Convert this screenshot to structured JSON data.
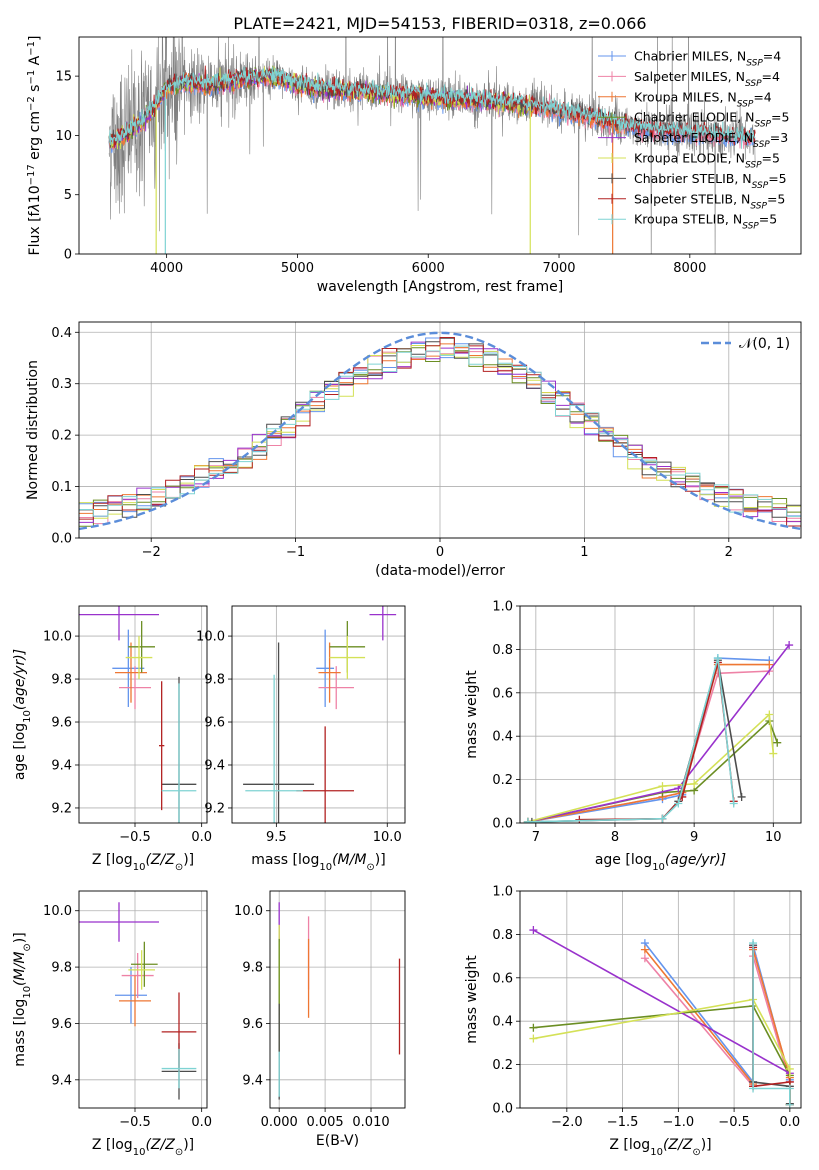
{
  "figure": {
    "title": "PLATE=2421, MJD=54153, FIBERID=0318, z=0.066"
  },
  "colors": {
    "data": "#808080",
    "chabrier_miles": "#6495ed",
    "salpeter_miles": "#ee82a6",
    "kroupa_miles": "#ee7733",
    "chabrier_elodie": "#6b8e23",
    "salpeter_elodie": "#9932cc",
    "kroupa_elodie": "#d4e157",
    "chabrier_stelib": "#4d4d4d",
    "salpeter_stelib": "#b22222",
    "kroupa_stelib": "#7fd3d3",
    "normal": "#5b8dd9"
  },
  "legend": {
    "models": [
      {
        "key": "chabrier_miles",
        "name": "Chabrier MILES, N",
        "sub": "SSP",
        "tail": "=4"
      },
      {
        "key": "salpeter_miles",
        "name": "Salpeter MILES, N",
        "sub": "SSP",
        "tail": "=4"
      },
      {
        "key": "kroupa_miles",
        "name": "Kroupa MILES, N",
        "sub": "SSP",
        "tail": "=4"
      },
      {
        "key": "chabrier_elodie",
        "name": "Chabrier ELODIE, N",
        "sub": "SSP",
        "tail": "=5"
      },
      {
        "key": "salpeter_elodie",
        "name": "Salpeter ELODIE, N",
        "sub": "SSP",
        "tail": "=3"
      },
      {
        "key": "kroupa_elodie",
        "name": "Kroupa ELODIE, N",
        "sub": "SSP",
        "tail": "=5"
      },
      {
        "key": "chabrier_stelib",
        "name": "Chabrier STELIB, N",
        "sub": "SSP",
        "tail": "=5"
      },
      {
        "key": "salpeter_stelib",
        "name": "Salpeter STELIB, N",
        "sub": "SSP",
        "tail": "=5"
      },
      {
        "key": "kroupa_stelib",
        "name": "Kroupa STELIB, N",
        "sub": "SSP",
        "tail": "=5"
      }
    ],
    "normal_label": "𝒩(0, 1)"
  },
  "chart_data": [
    {
      "id": "spectrum",
      "type": "line",
      "xlabel": "wavelength [Angstrom, rest frame]",
      "ylabel_parts": [
        "Flux [f",
        "λ",
        "10",
        "−17",
        " erg cm",
        "−2",
        " s",
        "−1",
        " A",
        "−1",
        "]"
      ],
      "xlim": [
        3330,
        8850
      ],
      "ylim": [
        0,
        18.3
      ],
      "xticks": [
        4000,
        5000,
        6000,
        7000,
        8000
      ],
      "xticklabels": [
        "4000",
        "5000",
        "6000",
        "7000",
        "8000"
      ],
      "yticks": [
        0,
        5,
        10,
        15
      ],
      "yticklabels": [
        "0",
        "5",
        "10",
        "15"
      ],
      "grid": false,
      "legend_position": "top-right",
      "continuum_knots": [
        [
          3600,
          9.5
        ],
        [
          3700,
          10.2
        ],
        [
          3800,
          11.0
        ],
        [
          3900,
          12.3
        ],
        [
          4000,
          14.0
        ],
        [
          4150,
          14.5
        ],
        [
          4300,
          14.2
        ],
        [
          4500,
          14.6
        ],
        [
          4800,
          15.0
        ],
        [
          5000,
          14.3
        ],
        [
          5200,
          13.9
        ],
        [
          5500,
          13.7
        ],
        [
          5800,
          13.4
        ],
        [
          6100,
          13.1
        ],
        [
          6400,
          12.9
        ],
        [
          6700,
          12.6
        ],
        [
          7000,
          12.1
        ],
        [
          7300,
          11.4
        ],
        [
          7600,
          10.6
        ],
        [
          8000,
          10.2
        ],
        [
          8400,
          9.8
        ],
        [
          8500,
          9.7
        ]
      ],
      "model_spectra": {
        "chabrier_miles": {
          "start": 3560,
          "end": 8500
        },
        "salpeter_miles": {
          "start": 3560,
          "end": 8500
        },
        "kroupa_miles": {
          "start": 3560,
          "end": 7500
        },
        "chabrier_elodie": {
          "start": 3560,
          "end": 6800
        },
        "salpeter_elodie": {
          "start": 3560,
          "end": 6800
        },
        "kroupa_elodie": {
          "start": 3560,
          "end": 6800
        },
        "chabrier_stelib": {
          "start": 3560,
          "end": 8500
        },
        "salpeter_stelib": {
          "start": 3560,
          "end": 8500
        },
        "kroupa_stelib": {
          "start": 3560,
          "end": 8500
        }
      },
      "dips": [
        {
          "x": 3920,
          "y": 0.0,
          "key": "kroupa_elodie"
        },
        {
          "x": 3990,
          "y": 0.0,
          "key": "kroupa_stelib"
        },
        {
          "x": 6780,
          "y": 0.0,
          "key": "kroupa_elodie"
        },
        {
          "x": 7410,
          "y": 0.0,
          "key": "kroupa_miles"
        }
      ]
    },
    {
      "id": "residuals",
      "type": "histogram",
      "xlabel": "(data-model)/error",
      "ylabel": "Normed distribution",
      "xlim": [
        -2.5,
        2.5
      ],
      "ylim": [
        0,
        0.42
      ],
      "xticks": [
        -2,
        -1,
        0,
        1,
        2
      ],
      "xticklabels": [
        "−2",
        "−1",
        "0",
        "1",
        "2"
      ],
      "yticks": [
        0.0,
        0.1,
        0.2,
        0.3,
        0.4
      ],
      "yticklabels": [
        "0.0",
        "0.1",
        "0.2",
        "0.3",
        "0.4"
      ],
      "grid": true,
      "legend_position": "top-right",
      "bin_width": 0.1,
      "bin_start": -2.5,
      "reference_curve": "normal(0,1)"
    },
    {
      "id": "age-vs-Z",
      "type": "errorbar",
      "xlabel_parts": [
        "Z [log",
        "10",
        "(Z/Z",
        "⊙",
        ")]"
      ],
      "ylabel_parts": [
        "age  [log",
        "10",
        "(age/yr)]"
      ],
      "xlim": [
        -0.92,
        0.04
      ],
      "ylim": [
        9.13,
        10.14
      ],
      "xticks": [
        -0.5,
        0.0
      ],
      "xticklabels": [
        "−0.5",
        "0.0"
      ],
      "yticks": [
        9.2,
        9.4,
        9.6,
        9.8,
        10.0
      ],
      "yticklabels": [
        "9.2",
        "9.4",
        "9.6",
        "9.8",
        "10.0"
      ],
      "grid": true,
      "points": [
        {
          "key": "salpeter_elodie",
          "x": -0.62,
          "y": 10.1,
          "xerr": 0.3,
          "yerr": 0.12
        },
        {
          "key": "chabrier_miles",
          "x": -0.55,
          "y": 9.85,
          "xerr": 0.12,
          "yerr": 0.18
        },
        {
          "key": "salpeter_miles",
          "x": -0.5,
          "y": 9.76,
          "xerr": 0.12,
          "yerr": 0.1
        },
        {
          "key": "kroupa_miles",
          "x": -0.53,
          "y": 9.83,
          "xerr": 0.12,
          "yerr": 0.14
        },
        {
          "key": "chabrier_elodie",
          "x": -0.45,
          "y": 9.95,
          "xerr": 0.1,
          "yerr": 0.12
        },
        {
          "key": "kroupa_elodie",
          "x": -0.47,
          "y": 9.9,
          "xerr": 0.1,
          "yerr": 0.1
        },
        {
          "key": "chabrier_stelib",
          "x": -0.17,
          "y": 9.31,
          "xerr": 0.13,
          "yerr": 0.5
        },
        {
          "key": "salpeter_stelib",
          "x": -0.3,
          "y": 9.49,
          "xerr": 0.02,
          "yerr": 0.3
        },
        {
          "key": "kroupa_stelib",
          "x": -0.17,
          "y": 9.28,
          "xerr": 0.13,
          "yerr": 0.5
        }
      ]
    },
    {
      "id": "age-vs-mass",
      "type": "errorbar",
      "xlabel_parts": [
        "mass [log",
        "10",
        "(M/M",
        "⊙",
        ")]"
      ],
      "ylabel_parts": [],
      "xlim": [
        9.3,
        10.08
      ],
      "ylim": [
        9.13,
        10.14
      ],
      "xticks": [
        9.5,
        10.0
      ],
      "xticklabels": [
        "9.5",
        "10.0"
      ],
      "yticks": [
        9.2,
        9.4,
        9.6,
        9.8,
        10.0
      ],
      "yticklabels": [
        "9.2",
        "9.4",
        "9.6",
        "9.8",
        "10.0"
      ],
      "grid": true,
      "points": [
        {
          "key": "salpeter_elodie",
          "x": 9.98,
          "y": 10.1,
          "xerr": 0.06,
          "yerr": 0.12
        },
        {
          "key": "chabrier_miles",
          "x": 9.72,
          "y": 9.85,
          "xerr": 0.04,
          "yerr": 0.18
        },
        {
          "key": "salpeter_miles",
          "x": 9.77,
          "y": 9.76,
          "xerr": 0.08,
          "yerr": 0.1
        },
        {
          "key": "kroupa_miles",
          "x": 9.74,
          "y": 9.83,
          "xerr": 0.05,
          "yerr": 0.14
        },
        {
          "key": "chabrier_elodie",
          "x": 9.82,
          "y": 9.95,
          "xerr": 0.08,
          "yerr": 0.12
        },
        {
          "key": "kroupa_elodie",
          "x": 9.82,
          "y": 9.9,
          "xerr": 0.08,
          "yerr": 0.1
        },
        {
          "key": "chabrier_stelib",
          "x": 9.51,
          "y": 9.31,
          "xerr": 0.16,
          "yerr": 0.66
        },
        {
          "key": "salpeter_stelib",
          "x": 9.72,
          "y": 9.28,
          "xerr": 0.13,
          "yerr": 0.3
        },
        {
          "key": "kroupa_stelib",
          "x": 9.49,
          "y": 9.28,
          "xerr": 0.13,
          "yerr": 0.54
        }
      ]
    },
    {
      "id": "weight-vs-age",
      "type": "line",
      "xlabel_parts": [
        "age  [log",
        "10",
        "(age/yr)]"
      ],
      "ylabel": "mass weight",
      "xlim": [
        6.8,
        10.35
      ],
      "ylim": [
        0,
        1.0
      ],
      "xticks": [
        7,
        8,
        9,
        10
      ],
      "xticklabels": [
        "7",
        "8",
        "9",
        "10"
      ],
      "yticks": [
        0.0,
        0.2,
        0.4,
        0.6,
        0.8,
        1.0
      ],
      "yticklabels": [
        "0.0",
        "0.2",
        "0.4",
        "0.6",
        "0.8",
        "1.0"
      ],
      "grid": true,
      "series": [
        {
          "key": "chabrier_miles",
          "x": [
            6.9,
            8.6,
            8.85,
            9.3,
            9.95
          ],
          "y": [
            0.005,
            0.11,
            0.13,
            0.76,
            0.75
          ]
        },
        {
          "key": "salpeter_miles",
          "x": [
            6.9,
            8.6,
            8.85,
            9.3,
            9.95
          ],
          "y": [
            0.005,
            0.12,
            0.14,
            0.69,
            0.7
          ]
        },
        {
          "key": "kroupa_miles",
          "x": [
            6.9,
            8.6,
            8.85,
            9.3,
            9.95
          ],
          "y": [
            0.005,
            0.12,
            0.14,
            0.73,
            0.73
          ]
        },
        {
          "key": "chabrier_elodie",
          "x": [
            6.9,
            8.6,
            9.0,
            9.95,
            10.05
          ],
          "y": [
            0.005,
            0.14,
            0.15,
            0.47,
            0.37
          ]
        },
        {
          "key": "salpeter_elodie",
          "x": [
            6.9,
            8.8,
            10.2
          ],
          "y": [
            0.005,
            0.16,
            0.82
          ]
        },
        {
          "key": "kroupa_elodie",
          "x": [
            6.9,
            8.6,
            9.0,
            9.95,
            10.0
          ],
          "y": [
            0.005,
            0.17,
            0.18,
            0.5,
            0.32
          ]
        },
        {
          "key": "chabrier_stelib",
          "x": [
            6.95,
            8.6,
            8.8,
            9.3,
            9.6
          ],
          "y": [
            0.005,
            0.02,
            0.1,
            0.75,
            0.12
          ]
        },
        {
          "key": "salpeter_stelib",
          "x": [
            7.55,
            8.6,
            8.85,
            9.3,
            9.5
          ],
          "y": [
            0.015,
            0.02,
            0.12,
            0.74,
            0.1
          ]
        },
        {
          "key": "kroupa_stelib",
          "x": [
            6.9,
            8.6,
            8.8,
            9.3,
            9.5
          ],
          "y": [
            0.005,
            0.02,
            0.09,
            0.76,
            0.09
          ]
        }
      ]
    },
    {
      "id": "mass-vs-Z",
      "type": "errorbar",
      "xlabel_parts": [
        "Z [log",
        "10",
        "(Z/Z",
        "⊙",
        ")]"
      ],
      "ylabel_parts": [
        "mass [log",
        "10",
        "(M/M",
        "⊙",
        ")]"
      ],
      "xlim": [
        -0.92,
        0.04
      ],
      "ylim": [
        9.3,
        10.07
      ],
      "xticks": [
        -0.5,
        0.0
      ],
      "xticklabels": [
        "−0.5",
        "0.0"
      ],
      "yticks": [
        9.4,
        9.6,
        9.8,
        10.0
      ],
      "yticklabels": [
        "9.4",
        "9.6",
        "9.8",
        "10.0"
      ],
      "grid": true,
      "points": [
        {
          "key": "salpeter_elodie",
          "x": -0.62,
          "y": 9.96,
          "xerr": 0.3,
          "yerr": 0.07
        },
        {
          "key": "chabrier_miles",
          "x": -0.53,
          "y": 9.7,
          "xerr": 0.12,
          "yerr": 0.1
        },
        {
          "key": "salpeter_miles",
          "x": -0.48,
          "y": 9.77,
          "xerr": 0.12,
          "yerr": 0.08
        },
        {
          "key": "kroupa_miles",
          "x": -0.5,
          "y": 9.68,
          "xerr": 0.12,
          "yerr": 0.09
        },
        {
          "key": "chabrier_elodie",
          "x": -0.43,
          "y": 9.81,
          "xerr": 0.1,
          "yerr": 0.08
        },
        {
          "key": "kroupa_elodie",
          "x": -0.45,
          "y": 9.79,
          "xerr": 0.1,
          "yerr": 0.07
        },
        {
          "key": "chabrier_stelib",
          "x": -0.17,
          "y": 9.43,
          "xerr": 0.13,
          "yerr": 0.1
        },
        {
          "key": "salpeter_stelib",
          "x": -0.17,
          "y": 9.57,
          "xerr": 0.13,
          "yerr": 0.14
        },
        {
          "key": "kroupa_stelib",
          "x": -0.17,
          "y": 9.44,
          "xerr": 0.13,
          "yerr": 0.07
        }
      ]
    },
    {
      "id": "mass-vs-EBV",
      "type": "errorbar",
      "xlabel": "E(B-V)",
      "ylabel_parts": [],
      "xlim": [
        -0.001,
        0.0137
      ],
      "ylim": [
        9.3,
        10.07
      ],
      "xticks": [
        0.0,
        0.005,
        0.01
      ],
      "xticklabels": [
        "0.000",
        "0.005",
        "0.010"
      ],
      "yticks": [
        9.4,
        9.6,
        9.8,
        10.0
      ],
      "yticklabels": [
        "9.4",
        "9.6",
        "9.8",
        "10.0"
      ],
      "grid": true,
      "points": [
        {
          "key": "salpeter_elodie",
          "x": 0.0,
          "y": 9.96,
          "xerr": 0.0,
          "yerr": 0.07
        },
        {
          "key": "kroupa_elodie",
          "x": 0.0,
          "y": 9.79,
          "xerr": 0.0,
          "yerr": 0.16
        },
        {
          "key": "chabrier_elodie",
          "x": 0.0,
          "y": 9.7,
          "xerr": 0.0,
          "yerr": 0.2
        },
        {
          "key": "chabrier_stelib",
          "x": 0.0,
          "y": 9.5,
          "xerr": 0.0,
          "yerr": 0.17
        },
        {
          "key": "kroupa_stelib",
          "x": 0.0,
          "y": 9.42,
          "xerr": 0.0,
          "yerr": 0.08
        },
        {
          "key": "salpeter_miles",
          "x": 0.0032,
          "y": 9.85,
          "xerr": 0.0,
          "yerr": 0.13
        },
        {
          "key": "kroupa_miles",
          "x": 0.0032,
          "y": 9.76,
          "xerr": 0.0,
          "yerr": 0.14
        },
        {
          "key": "salpeter_stelib",
          "x": 0.0131,
          "y": 9.66,
          "xerr": 0.0,
          "yerr": 0.17
        }
      ]
    },
    {
      "id": "weight-vs-Z",
      "type": "line",
      "xlabel_parts": [
        "Z [log",
        "10",
        "(Z/Z",
        "⊙",
        ")]"
      ],
      "ylabel": "mass weight",
      "xlim": [
        -2.42,
        0.1
      ],
      "ylim": [
        0,
        1.0
      ],
      "xticks": [
        -2.0,
        -1.5,
        -1.0,
        -0.5,
        0.0
      ],
      "xticklabels": [
        "−2.0",
        "−1.5",
        "−1.0",
        "−0.5",
        "0.0"
      ],
      "yticks": [
        0.0,
        0.2,
        0.4,
        0.6,
        0.8,
        1.0
      ],
      "yticklabels": [
        "0.0",
        "0.2",
        "0.4",
        "0.6",
        "0.8",
        "1.0"
      ],
      "grid": true,
      "series": [
        {
          "key": "chabrier_miles",
          "x": [
            -1.3,
            -0.33,
            -0.33,
            0.0,
            0.0
          ],
          "y": [
            0.76,
            0.12,
            0.75,
            0.13,
            0.015
          ]
        },
        {
          "key": "salpeter_miles",
          "x": [
            -1.3,
            -0.33,
            -0.33,
            0.0,
            0.0
          ],
          "y": [
            0.69,
            0.1,
            0.7,
            0.12,
            0.015
          ]
        },
        {
          "key": "kroupa_miles",
          "x": [
            -1.3,
            -0.33,
            -0.33,
            0.0,
            0.0
          ],
          "y": [
            0.73,
            0.11,
            0.73,
            0.14,
            0.015
          ]
        },
        {
          "key": "chabrier_elodie",
          "x": [
            -2.3,
            -0.33,
            0.0,
            0.0
          ],
          "y": [
            0.37,
            0.47,
            0.15,
            0.015
          ]
        },
        {
          "key": "salpeter_elodie",
          "x": [
            -2.3,
            0.0
          ],
          "y": [
            0.82,
            0.16
          ]
        },
        {
          "key": "kroupa_elodie",
          "x": [
            -2.3,
            -0.33,
            0.0,
            0.0
          ],
          "y": [
            0.32,
            0.5,
            0.18,
            0.015
          ]
        },
        {
          "key": "chabrier_stelib",
          "x": [
            -0.33,
            -0.33,
            0.0,
            0.0
          ],
          "y": [
            0.75,
            0.12,
            0.1,
            0.02
          ]
        },
        {
          "key": "salpeter_stelib",
          "x": [
            -0.33,
            -0.33,
            0.0,
            0.0
          ],
          "y": [
            0.74,
            0.1,
            0.12,
            0.015
          ]
        },
        {
          "key": "kroupa_stelib",
          "x": [
            -0.33,
            -0.33,
            0.0,
            0.0
          ],
          "y": [
            0.76,
            0.09,
            0.09,
            0.015
          ]
        }
      ]
    }
  ]
}
